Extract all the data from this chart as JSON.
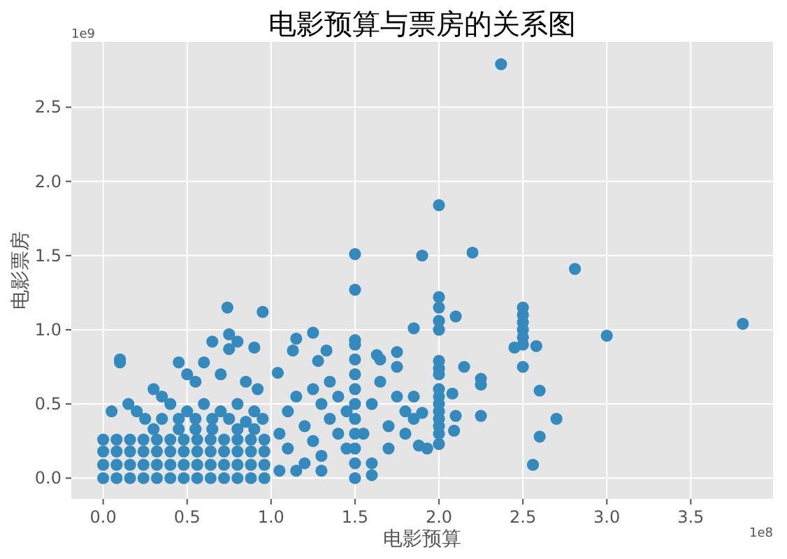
{
  "chart_data": {
    "type": "scatter",
    "title": "电影预算与票房的关系图",
    "xlabel": "电影预算",
    "ylabel": "电影票房",
    "annotations": [
      "1e9",
      "1e8"
    ],
    "xlim": [
      -0.19,
      3.99
    ],
    "ylim": [
      -0.14,
      2.94
    ],
    "xticks": [
      {
        "value": 0,
        "label": "0.0"
      },
      0.5,
      {
        "value": 1,
        "label": "1.0"
      },
      1.5,
      {
        "value": 2,
        "label": "2.0"
      },
      2.5,
      {
        "value": 3,
        "label": "3.0"
      },
      3.5
    ],
    "yticks": [
      {
        "value": 0,
        "label": "0.0"
      },
      0.5,
      {
        "value": 1,
        "label": "1.0"
      },
      1.5,
      {
        "value": 2,
        "label": "2.0"
      },
      2.5
    ],
    "grid": true,
    "marker": "circle",
    "series": [
      {
        "color": "#348abd",
        "x": [
          2.37,
          2.0,
          1.5,
          1.5,
          0.74,
          0.95,
          1.9,
          2.2,
          2.81,
          2.0,
          1.85,
          2.1,
          2.0,
          2.0,
          2.0,
          3.81,
          3.0,
          2.5,
          2.5,
          2.5,
          2.5,
          2.5,
          2.5,
          2.5,
          2.45,
          2.58,
          2.6,
          2.7,
          2.6,
          2.56,
          2.25,
          2.25,
          2.25,
          2.15,
          2.0,
          2.0,
          2.0,
          2.0,
          2.0,
          2.0,
          2.0,
          2.0,
          2.0,
          2.0,
          2.0,
          2.08,
          2.1,
          2.09,
          1.93,
          1.88,
          1.85,
          1.85,
          1.9,
          1.75,
          1.63,
          1.5,
          1.5,
          1.5,
          1.5,
          1.5,
          1.5,
          1.5,
          1.5,
          1.5,
          1.5,
          1.5,
          1.25,
          1.15,
          1.33,
          1.13,
          1.04,
          1.28,
          1.05,
          1.1,
          1.1,
          1.15,
          1.2,
          1.2,
          1.25,
          1.25,
          1.3,
          1.3,
          1.35,
          1.35,
          1.4,
          1.4,
          1.45,
          1.45,
          1.05,
          1.3,
          1.15,
          1.55,
          1.6,
          1.6,
          1.65,
          1.7,
          1.7,
          1.75,
          1.75,
          1.8,
          1.8,
          1.65,
          1.6,
          0.1,
          0.1,
          0.05,
          0.15,
          0.2,
          0.3,
          0.35,
          0.4,
          0.45,
          0.5,
          0.55,
          0.6,
          0.65,
          0.7,
          0.75,
          0.75,
          0.8,
          0.85,
          0.9,
          0.92,
          0.6,
          0.7,
          0.8,
          0.9,
          0.5,
          0.25,
          0.35,
          0.45,
          0.55,
          0.65,
          0.75,
          0.85,
          0.95,
          0,
          0.08,
          0.16,
          0.24,
          0.32,
          0.4,
          0.48,
          0.56,
          0.64,
          0.72,
          0.8,
          0.88,
          0.96,
          0,
          0.08,
          0.16,
          0.24,
          0.32,
          0.4,
          0.48,
          0.56,
          0.64,
          0.72,
          0.8,
          0.88,
          0.96,
          0,
          0.08,
          0.16,
          0.24,
          0.32,
          0.4,
          0.48,
          0.56,
          0.64,
          0.72,
          0.8,
          0.88,
          0.96,
          0,
          0.08,
          0.16,
          0.24,
          0.32,
          0.4,
          0.48,
          0.56,
          0.64,
          0.72,
          0.8,
          0.88,
          0.96,
          0.3,
          0.45,
          0.55,
          0.65,
          0.8,
          0.9
        ],
        "values": [
          2.79,
          1.84,
          1.51,
          1.27,
          1.15,
          1.12,
          1.5,
          1.52,
          1.41,
          1.22,
          1.01,
          1.09,
          1.15,
          1.06,
          1.0,
          1.04,
          0.96,
          1.15,
          1.1,
          1.05,
          1.0,
          0.95,
          0.9,
          0.75,
          0.88,
          0.89,
          0.59,
          0.4,
          0.28,
          0.09,
          0.67,
          0.63,
          0.42,
          0.75,
          0.79,
          0.74,
          0.7,
          0.6,
          0.55,
          0.5,
          0.45,
          0.4,
          0.35,
          0.3,
          0.23,
          0.57,
          0.42,
          0.32,
          0.2,
          0.22,
          0.4,
          0.55,
          0.44,
          0.85,
          0.83,
          0.93,
          0.9,
          0.8,
          0.7,
          0.6,
          0.5,
          0.4,
          0.3,
          0.2,
          0.1,
          0.0,
          0.98,
          0.94,
          0.86,
          0.86,
          0.71,
          0.79,
          0.3,
          0.45,
          0.2,
          0.55,
          0.35,
          0.1,
          0.6,
          0.25,
          0.5,
          0.15,
          0.4,
          0.65,
          0.3,
          0.55,
          0.2,
          0.45,
          0.05,
          0.05,
          0.05,
          0.3,
          0.5,
          0.1,
          0.65,
          0.35,
          0.2,
          0.55,
          0.75,
          0.3,
          0.45,
          0.8,
          0.02,
          0.8,
          0.78,
          0.45,
          0.5,
          0.45,
          0.6,
          0.55,
          0.5,
          0.78,
          0.7,
          0.65,
          0.78,
          0.92,
          0.7,
          0.87,
          0.97,
          0.92,
          0.65,
          0.88,
          0.6,
          0.5,
          0.45,
          0.5,
          0.45,
          0.45,
          0.4,
          0.4,
          0.4,
          0.4,
          0.4,
          0.4,
          0.38,
          0.4,
          0,
          0,
          0,
          0,
          0,
          0,
          0,
          0,
          0,
          0,
          0,
          0,
          0,
          0.09,
          0.09,
          0.09,
          0.09,
          0.09,
          0.09,
          0.09,
          0.09,
          0.09,
          0.09,
          0.09,
          0.09,
          0.09,
          0.18,
          0.18,
          0.18,
          0.18,
          0.18,
          0.18,
          0.18,
          0.18,
          0.18,
          0.18,
          0.18,
          0.18,
          0.18,
          0.26,
          0.26,
          0.26,
          0.26,
          0.26,
          0.26,
          0.26,
          0.26,
          0.26,
          0.26,
          0.26,
          0.26,
          0.26,
          0.33,
          0.33,
          0.33,
          0.33,
          0.33,
          0.33
        ]
      }
    ]
  }
}
